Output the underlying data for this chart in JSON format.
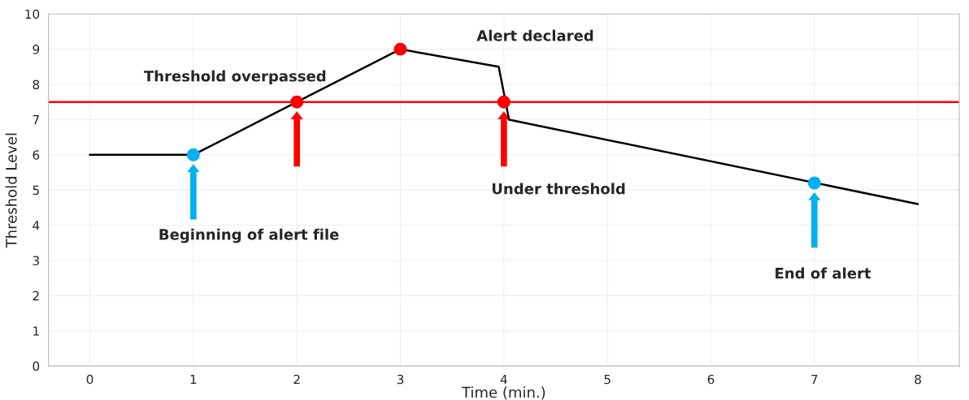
{
  "chart_data": {
    "type": "line",
    "xlabel": "Time (min.)",
    "ylabel": "Threshold Level",
    "xlim": [
      -0.4,
      8.4
    ],
    "xticks": [
      0,
      1,
      2,
      3,
      4,
      5,
      6,
      7,
      8
    ],
    "ylim": [
      0,
      10
    ],
    "yticks": [
      0,
      1,
      2,
      3,
      4,
      5,
      6,
      7,
      8,
      9,
      10
    ],
    "grid": true,
    "legend": false,
    "series": [
      {
        "color": "#000000",
        "x": [
          0,
          1,
          2,
          3,
          3.95,
          4.05,
          8
        ],
        "values": [
          6,
          6,
          7.5,
          9,
          8.5,
          7.0,
          4.6
        ],
        "marker": "none"
      },
      {
        "type": "scatter",
        "color": "#00b0f0",
        "x": [
          1,
          7
        ],
        "values": [
          6,
          5.2
        ],
        "marker": "circle"
      },
      {
        "type": "scatter",
        "color": "#ff0000",
        "x": [
          2,
          3,
          4
        ],
        "values": [
          7.5,
          9,
          7.5
        ],
        "marker": "circle"
      }
    ],
    "ref_lines": [
      {
        "axis": "y",
        "value": 7.5,
        "color": "#ff0000"
      }
    ],
    "annotations": [
      "Beginning of alert file",
      "Threshold overpassed",
      "Alert declared",
      "Under threshold",
      "End of alert"
    ]
  }
}
